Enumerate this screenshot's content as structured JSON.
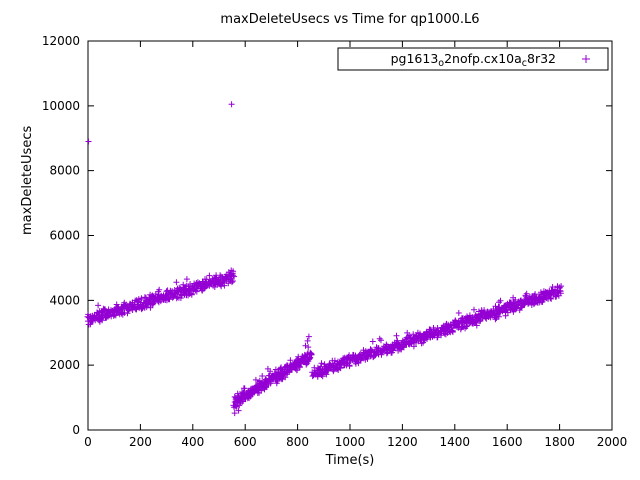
{
  "title": "maxDeleteUsecs vs Time for qp1000.L6",
  "chart_data": {
    "type": "scatter",
    "title": "maxDeleteUsecs vs Time for qp1000.L6",
    "xlabel": "Time(s)",
    "ylabel": "maxDeleteUsecs",
    "xlim": [
      0,
      2000
    ],
    "ylim": [
      0,
      12000
    ],
    "xticks": [
      0,
      200,
      400,
      600,
      800,
      1000,
      1200,
      1400,
      1600,
      1800,
      2000
    ],
    "yticks": [
      0,
      2000,
      4000,
      6000,
      8000,
      10000,
      12000
    ],
    "grid": false,
    "legend": {
      "label": "pg1613_o2nofp.cx10a_c8r32",
      "label_parts": [
        {
          "text": "pg1613",
          "sub": false
        },
        {
          "text": "o",
          "sub": true
        },
        {
          "text": "2nofp.cx10a",
          "sub": false
        },
        {
          "text": "c",
          "sub": true
        },
        {
          "text": "8r32",
          "sub": false
        }
      ],
      "marker": "plus",
      "color": "#9400d3",
      "position": "top-right",
      "box": true
    },
    "series": [
      {
        "name": "pg1613_o2nofp.cx10a_c8r32",
        "color": "#9400d3",
        "marker": "plus",
        "trend_segments": [
          {
            "x_start": 0,
            "x_end": 557,
            "y_start": 3400,
            "y_end": 4750,
            "noise": 220,
            "count": 430
          },
          {
            "x_start": 558,
            "x_end": 852,
            "y_start": 850,
            "y_end": 2300,
            "noise": 210,
            "count": 300
          },
          {
            "x_start": 858,
            "x_end": 1805,
            "y_start": 1750,
            "y_end": 4300,
            "noise": 220,
            "count": 750
          }
        ],
        "outliers": [
          [
            2,
            8900
          ],
          [
            548,
            10050
          ],
          [
            560,
            520
          ],
          [
            575,
            600
          ],
          [
            830,
            2600
          ],
          [
            838,
            2750
          ],
          [
            843,
            2880
          ]
        ]
      }
    ]
  },
  "layout_colors": {
    "marker": "#9400d3",
    "axis": "#000000",
    "background": "#ffffff"
  }
}
